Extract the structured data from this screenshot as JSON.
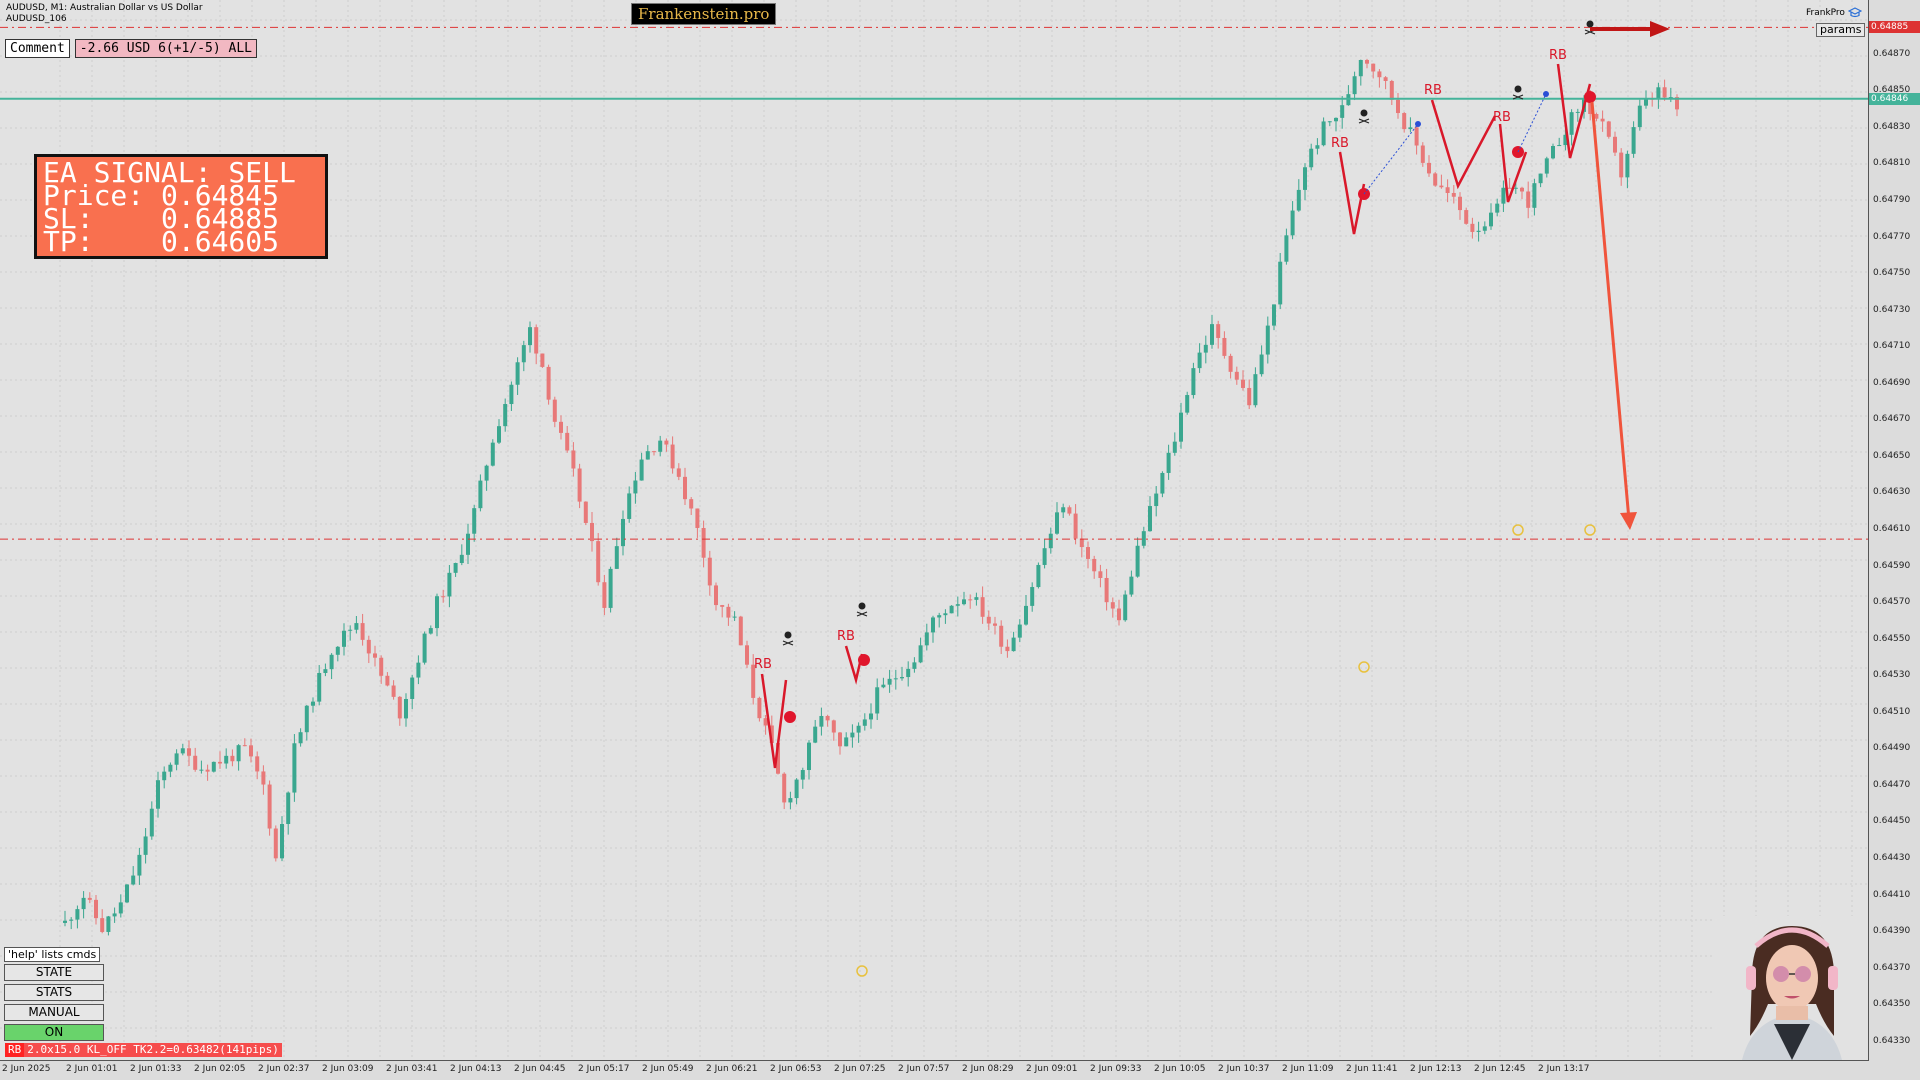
{
  "header": {
    "symbol_line": "AUDUSD, M1:  Australian Dollar vs US Dollar",
    "sub_line": "AUDUSD_106",
    "brand": "Frankenstein.pro",
    "frankpro": "FrankPro",
    "params_label": "params"
  },
  "comment_bar": {
    "button_label": "Comment",
    "pnl": "-2.66 USD 6(+1/-5) ALL"
  },
  "signal": {
    "line1": "EA SIGNAL: SELL",
    "line2": "Price: 0.64845",
    "line3": "SL:    0.64885",
    "line4": "TP:    0.64605"
  },
  "command_panel": {
    "help": "'help' lists cmds",
    "buttons": [
      "STATE",
      "STATS",
      "MANUAL",
      "ON"
    ]
  },
  "status": {
    "tag": "RB",
    "text": "2.0x15.0 KL_OFF TK2.2=0.63482(141pips)"
  },
  "price_axis": {
    "ticks": [
      "0.64870",
      "0.64850",
      "0.64830",
      "0.64810",
      "0.64790",
      "0.64770",
      "0.64750",
      "0.64730",
      "0.64710",
      "0.64690",
      "0.64670",
      "0.64650",
      "0.64630",
      "0.64610",
      "0.64590",
      "0.64570",
      "0.64550",
      "0.64530",
      "0.64510",
      "0.64490",
      "0.64470",
      "0.64450",
      "0.64430",
      "0.64410",
      "0.64390",
      "0.64370",
      "0.64350",
      "0.64330"
    ],
    "sl_price": "0.64885",
    "entry_price": "0.64846"
  },
  "time_axis": {
    "ticks": [
      "2 Jun 2025",
      "2 Jun 01:01",
      "2 Jun 01:33",
      "2 Jun 02:05",
      "2 Jun 02:37",
      "2 Jun 03:09",
      "2 Jun 03:41",
      "2 Jun 04:13",
      "2 Jun 04:45",
      "2 Jun 05:17",
      "2 Jun 05:49",
      "2 Jun 06:21",
      "2 Jun 06:53",
      "2 Jun 07:25",
      "2 Jun 07:57",
      "2 Jun 08:29",
      "2 Jun 09:01",
      "2 Jun 09:33",
      "2 Jun 10:05",
      "2 Jun 10:37",
      "2 Jun 11:09",
      "2 Jun 11:41",
      "2 Jun 12:13",
      "2 Jun 12:45",
      "2 Jun 13:17"
    ]
  },
  "patterns": {
    "label": "RB",
    "labels": [
      "RB",
      "RB",
      "RB",
      "RB",
      "RB",
      "RB"
    ]
  },
  "chart_data": {
    "type": "candlestick",
    "symbol": "AUDUSD",
    "timeframe": "M1",
    "ylim": [
      0.6432,
      0.649
    ],
    "levels": {
      "stop_loss": 0.64885,
      "entry": 0.64846,
      "take_profit": 0.64605
    },
    "path": [
      [
        0,
        0.64395
      ],
      [
        3,
        0.6441
      ],
      [
        6,
        0.64392
      ],
      [
        9,
        0.64405
      ],
      [
        12,
        0.6443
      ],
      [
        15,
        0.6447
      ],
      [
        18,
        0.6449
      ],
      [
        22,
        0.6448
      ],
      [
        26,
        0.64485
      ],
      [
        29,
        0.6449
      ],
      [
        32,
        0.6447
      ],
      [
        34,
        0.6443
      ],
      [
        37,
        0.6449
      ],
      [
        40,
        0.6452
      ],
      [
        43,
        0.64545
      ],
      [
        47,
        0.6456
      ],
      [
        51,
        0.6453
      ],
      [
        54,
        0.6451
      ],
      [
        57,
        0.6454
      ],
      [
        60,
        0.6457
      ],
      [
        63,
        0.6459
      ],
      [
        66,
        0.6462
      ],
      [
        69,
        0.6466
      ],
      [
        72,
        0.6469
      ],
      [
        75,
        0.6472
      ],
      [
        77,
        0.647
      ],
      [
        79,
        0.6467
      ],
      [
        82,
        0.6464
      ],
      [
        85,
        0.646
      ],
      [
        87,
        0.6457
      ],
      [
        90,
        0.6462
      ],
      [
        93,
        0.6465
      ],
      [
        96,
        0.6466
      ],
      [
        99,
        0.6464
      ],
      [
        102,
        0.6461
      ],
      [
        105,
        0.6457
      ],
      [
        108,
        0.6456
      ],
      [
        111,
        0.6452
      ],
      [
        114,
        0.6449
      ],
      [
        116,
        0.6446
      ],
      [
        119,
        0.6448
      ],
      [
        122,
        0.6451
      ],
      [
        125,
        0.6449
      ],
      [
        128,
        0.645
      ],
      [
        131,
        0.6452
      ],
      [
        134,
        0.6453
      ],
      [
        137,
        0.6454
      ],
      [
        140,
        0.6456
      ],
      [
        143,
        0.6457
      ],
      [
        146,
        0.64575
      ],
      [
        149,
        0.6456
      ],
      [
        152,
        0.64545
      ],
      [
        155,
        0.6457
      ],
      [
        158,
        0.646
      ],
      [
        161,
        0.64625
      ],
      [
        164,
        0.646
      ],
      [
        167,
        0.6458
      ],
      [
        170,
        0.6456
      ],
      [
        173,
        0.646
      ],
      [
        176,
        0.6463
      ],
      [
        179,
        0.6466
      ],
      [
        182,
        0.647
      ],
      [
        185,
        0.6472
      ],
      [
        188,
        0.647
      ],
      [
        191,
        0.6468
      ],
      [
        194,
        0.6472
      ],
      [
        197,
        0.6477
      ],
      [
        200,
        0.6481
      ],
      [
        203,
        0.6483
      ],
      [
        206,
        0.6484
      ],
      [
        209,
        0.6487
      ],
      [
        212,
        0.6486
      ],
      [
        215,
        0.6484
      ],
      [
        218,
        0.6482
      ],
      [
        221,
        0.648
      ],
      [
        224,
        0.6479
      ],
      [
        227,
        0.64775
      ],
      [
        230,
        0.6478
      ],
      [
        233,
        0.648
      ],
      [
        236,
        0.6479
      ],
      [
        239,
        0.6481
      ],
      [
        242,
        0.6483
      ],
      [
        245,
        0.64845
      ],
      [
        248,
        0.6483
      ],
      [
        251,
        0.64805
      ],
      [
        254,
        0.6484
      ],
      [
        257,
        0.6485
      ],
      [
        260,
        0.6484
      ]
    ]
  }
}
